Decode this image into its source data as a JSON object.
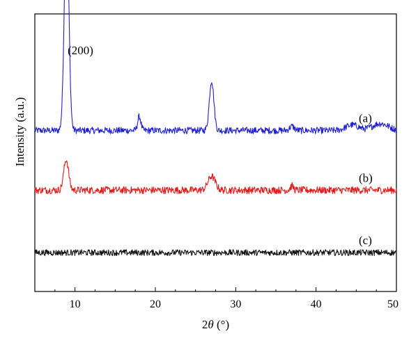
{
  "chart_data": {
    "type": "line",
    "xlabel_prefix": "2",
    "xlabel_var": "θ",
    "xlabel_unit": " (°)",
    "ylabel": "Intensity (a.u.)",
    "xlim": [
      5,
      50
    ],
    "x_ticks": [
      10,
      20,
      30,
      40,
      50
    ],
    "y_ticks_shown": false,
    "grid": false,
    "peak_annotation": {
      "text": "(200)",
      "x": 9.0
    },
    "series": [
      {
        "name": "(a)",
        "color": "#1f1fd6",
        "baseline": 0.58,
        "noise": 0.012,
        "peaks": [
          {
            "x": 8.95,
            "height": 0.78,
            "width": 0.28
          },
          {
            "x": 18.0,
            "height": 0.05,
            "width": 0.2
          },
          {
            "x": 27.0,
            "height": 0.18,
            "width": 0.28
          },
          {
            "x": 37.0,
            "height": 0.015,
            "width": 0.3
          },
          {
            "x": 44.5,
            "height": 0.02,
            "width": 0.8
          },
          {
            "x": 48.0,
            "height": 0.025,
            "width": 1.0
          }
        ]
      },
      {
        "name": "(b)",
        "color": "#e41a1a",
        "baseline": 0.365,
        "noise": 0.013,
        "peaks": [
          {
            "x": 8.9,
            "height": 0.11,
            "width": 0.3
          },
          {
            "x": 27.0,
            "height": 0.05,
            "width": 0.45
          },
          {
            "x": 37.0,
            "height": 0.015,
            "width": 0.2
          }
        ]
      },
      {
        "name": "(c)",
        "color": "#111111",
        "baseline": 0.14,
        "noise": 0.011,
        "peaks": []
      }
    ]
  }
}
